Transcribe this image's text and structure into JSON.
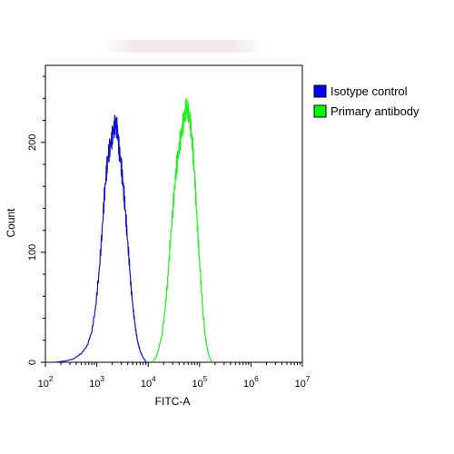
{
  "chart_data": {
    "type": "line",
    "xlabel": "FITC-A",
    "ylabel": "Count",
    "x_scale": "log",
    "xlim": [
      100,
      10000000
    ],
    "ylim": [
      0,
      270
    ],
    "x_ticks": [
      {
        "value": 100,
        "base": "10",
        "exp": "2"
      },
      {
        "value": 1000,
        "base": "10",
        "exp": "3"
      },
      {
        "value": 10000,
        "base": "10",
        "exp": "4"
      },
      {
        "value": 100000,
        "base": "10",
        "exp": "5"
      },
      {
        "value": 1000000,
        "base": "10",
        "exp": "6"
      },
      {
        "value": 10000000,
        "base": "10",
        "exp": "7"
      }
    ],
    "y_ticks": [
      0,
      100,
      200
    ],
    "grid": false,
    "legend_position": "right",
    "series": [
      {
        "name": "Isotype control",
        "color": "#1414c8",
        "legend_color": "#0000ff",
        "x": [
          150,
          230,
          350,
          500,
          650,
          800,
          950,
          1100,
          1250,
          1400,
          1550,
          1700,
          1900,
          2100,
          2300,
          2500,
          2700,
          3000,
          3300,
          3600,
          3900,
          4300,
          4700,
          5200,
          5700,
          6300,
          7000,
          7800,
          8600,
          9200
        ],
        "y": [
          0,
          1,
          3,
          8,
          15,
          28,
          50,
          80,
          115,
          150,
          175,
          190,
          200,
          210,
          217,
          212,
          195,
          178,
          158,
          138,
          115,
          90,
          65,
          45,
          30,
          18,
          10,
          5,
          2,
          0
        ]
      },
      {
        "name": "Primary antibody",
        "color": "#22ee22",
        "legend_color": "#00ff00",
        "x": [
          12000,
          14000,
          16000,
          18500,
          21000,
          24000,
          27000,
          31000,
          35000,
          40000,
          45000,
          50000,
          55000,
          60000,
          66000,
          72000,
          80000,
          88000,
          97000,
          107000,
          118000,
          130000,
          145000,
          160000,
          180000
        ],
        "y": [
          0,
          4,
          12,
          25,
          45,
          75,
          110,
          145,
          175,
          195,
          210,
          222,
          232,
          228,
          218,
          200,
          170,
          135,
          100,
          70,
          42,
          22,
          10,
          3,
          0
        ]
      }
    ]
  }
}
